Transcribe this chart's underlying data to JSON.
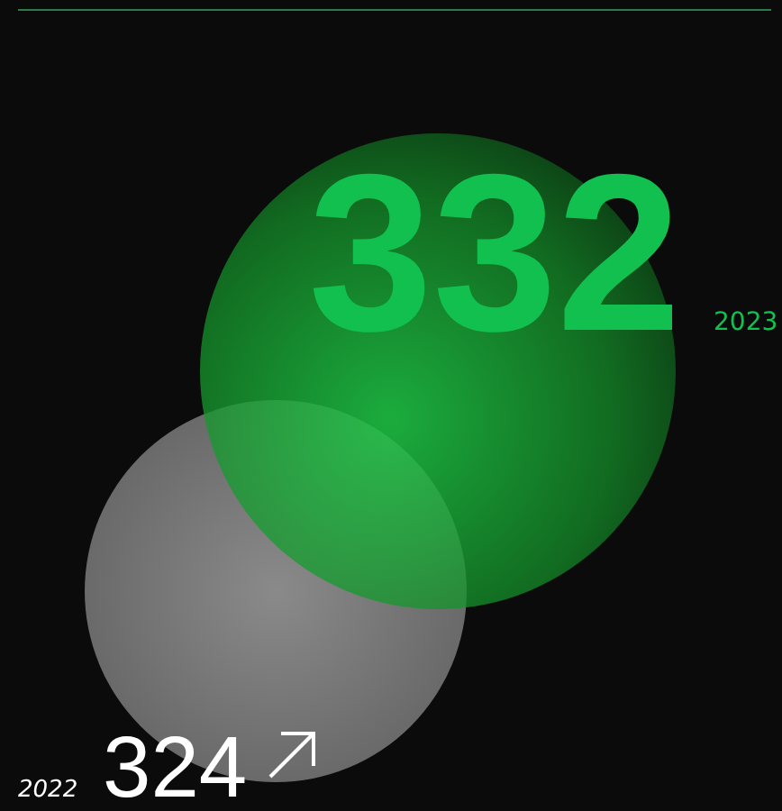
{
  "chart_data": {
    "type": "other",
    "categories": [
      "2023",
      "2022"
    ],
    "values": [
      332,
      324
    ],
    "colors": [
      "#12c050",
      "#ffffff"
    ],
    "data_labels": true
  }
}
